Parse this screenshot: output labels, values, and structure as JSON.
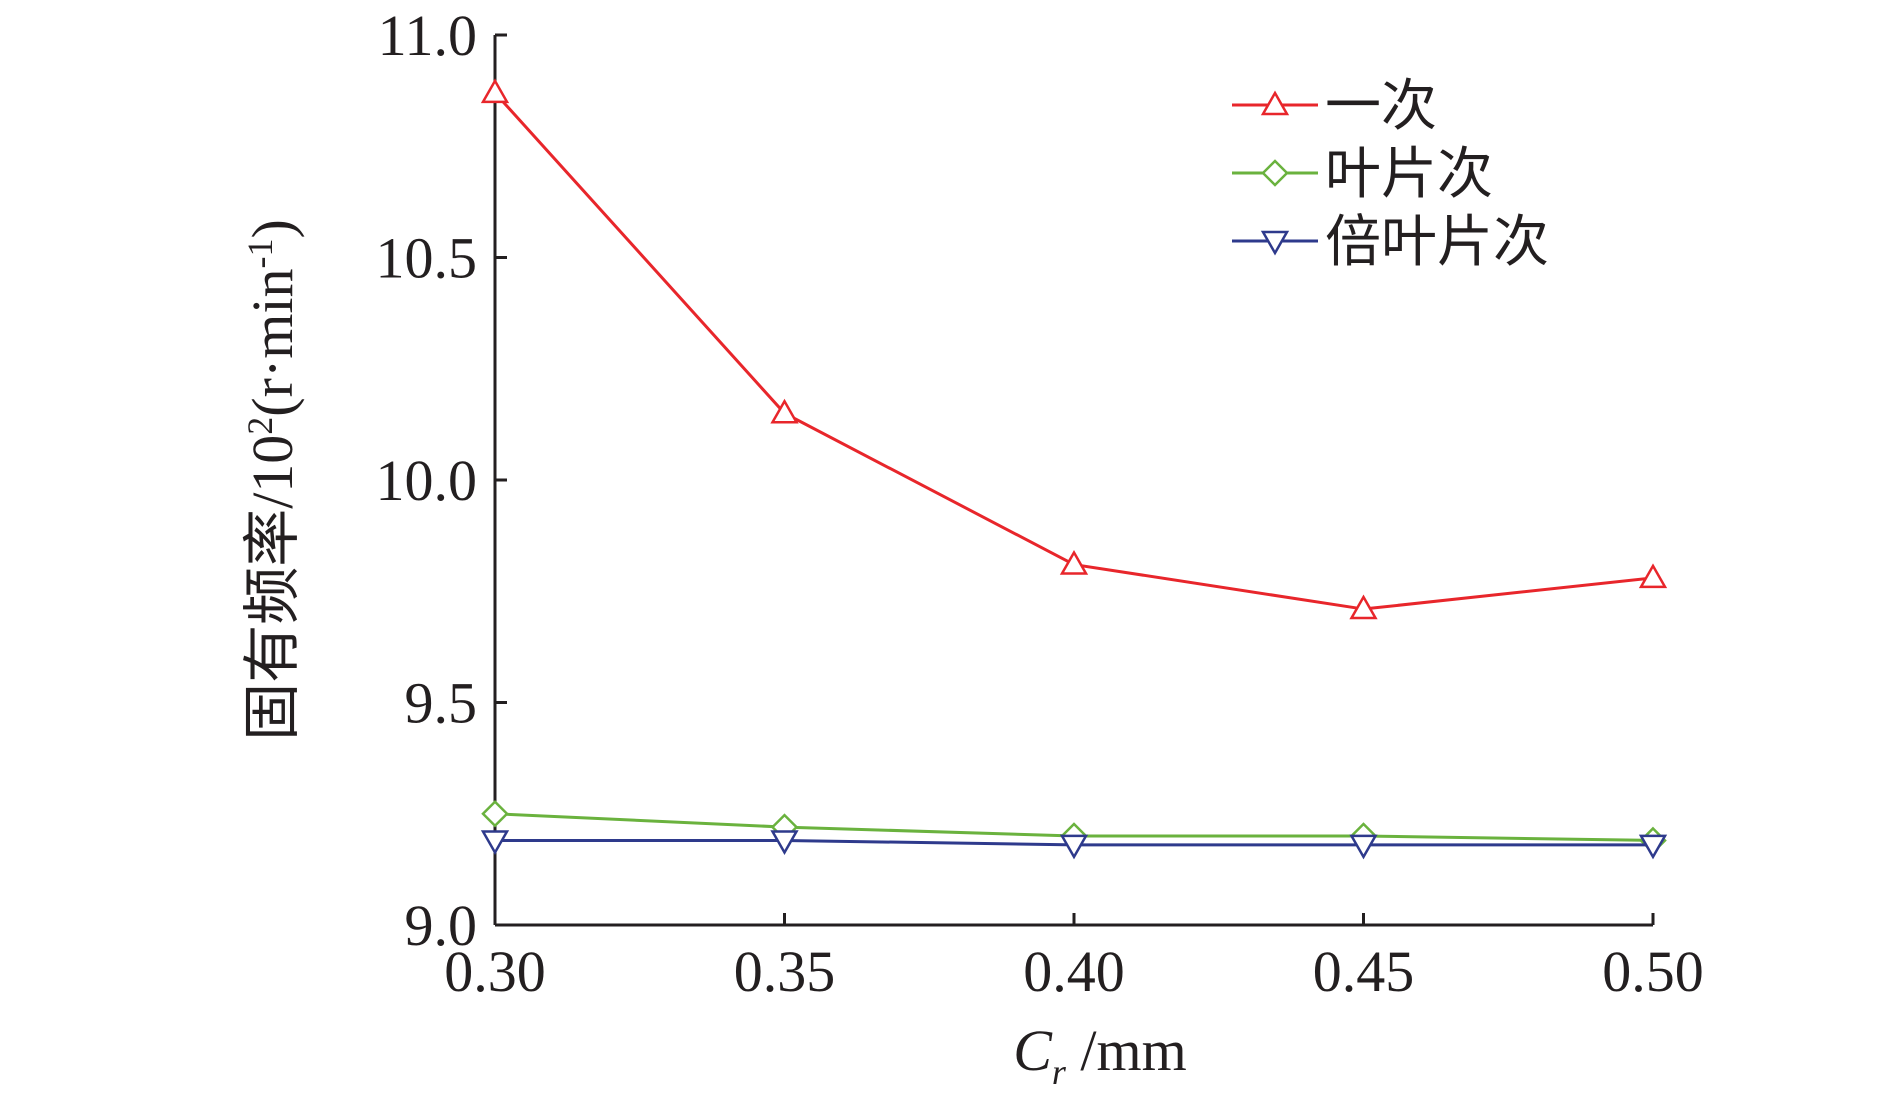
{
  "chart_data": {
    "type": "line",
    "x": [
      0.3,
      0.35,
      0.4,
      0.45,
      0.5
    ],
    "xtick_labels": [
      "0.30",
      "0.35",
      "0.40",
      "0.45",
      "0.50"
    ],
    "ytick_values": [
      9.0,
      9.5,
      10.0,
      10.5,
      11.0
    ],
    "ytick_labels": [
      "9.0",
      "9.5",
      "10.0",
      "10.5",
      "11.0"
    ],
    "xlim": [
      0.3,
      0.5
    ],
    "ylim": [
      9.0,
      11.0
    ],
    "xlabel_main": "C",
    "xlabel_sub": "r",
    "xlabel_unit": " /mm",
    "ylabel_main": "固有频率/10",
    "ylabel_sup": "2",
    "ylabel_mid": "(r·min",
    "ylabel_sup2": "-1",
    "ylabel_end": ")",
    "legend_position": "top-right",
    "grid": false,
    "series": [
      {
        "name": "一次",
        "color": "#e8262b",
        "marker": "triangle-up",
        "values": [
          10.87,
          10.15,
          9.81,
          9.71,
          9.78
        ]
      },
      {
        "name": "叶片次",
        "color": "#6ab23e",
        "marker": "diamond",
        "values": [
          9.25,
          9.22,
          9.2,
          9.2,
          9.19
        ]
      },
      {
        "name": "倍叶片次",
        "color": "#2e3a8c",
        "marker": "triangle-down",
        "values": [
          9.19,
          9.19,
          9.18,
          9.18,
          9.18
        ]
      }
    ]
  }
}
